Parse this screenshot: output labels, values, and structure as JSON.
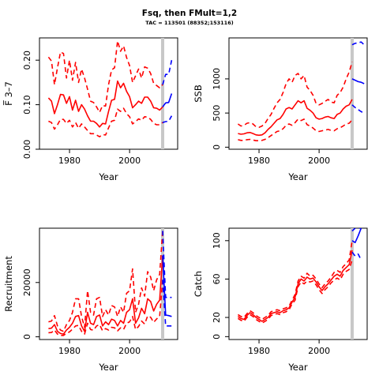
{
  "title": "Fsq, then FMult=1,2",
  "subtitle": "TAC = 113501 (88352;153116)",
  "colors": {
    "history": "#ff0000",
    "projection": "#0000ff",
    "current_year_line": "#c8c8c8",
    "axis": "#000000"
  },
  "chart_data": [
    {
      "type": "line",
      "id": "f",
      "ylabel": "F̅ 3–7",
      "xlabel": "Year",
      "xlim": [
        1970,
        2016
      ],
      "ylim": [
        0,
        0.25
      ],
      "xticks": [
        1980,
        2000
      ],
      "yticks": [
        0.0,
        0.1,
        0.2
      ],
      "ytick_labels": [
        "0.00",
        "0.10",
        "0.20"
      ],
      "vline_x": 2011,
      "history": {
        "x": [
          1973,
          1974,
          1975,
          1976,
          1977,
          1978,
          1979,
          1980,
          1981,
          1982,
          1983,
          1984,
          1985,
          1986,
          1987,
          1988,
          1989,
          1990,
          1991,
          1992,
          1993,
          1994,
          1995,
          1996,
          1997,
          1998,
          1999,
          2000,
          2001,
          2002,
          2003,
          2004,
          2005,
          2006,
          2007,
          2008,
          2009,
          2010,
          2011
        ],
        "mid": [
          0.115,
          0.108,
          0.08,
          0.1,
          0.123,
          0.122,
          0.103,
          0.118,
          0.088,
          0.11,
          0.085,
          0.1,
          0.09,
          0.075,
          0.063,
          0.063,
          0.058,
          0.05,
          0.058,
          0.057,
          0.085,
          0.11,
          0.112,
          0.153,
          0.138,
          0.148,
          0.13,
          0.118,
          0.093,
          0.1,
          0.108,
          0.103,
          0.117,
          0.117,
          0.108,
          0.093,
          0.092,
          0.088,
          0.095
        ],
        "upper": [
          0.207,
          0.198,
          0.145,
          0.183,
          0.218,
          0.215,
          0.16,
          0.2,
          0.155,
          0.195,
          0.15,
          0.18,
          0.16,
          0.135,
          0.108,
          0.105,
          0.095,
          0.083,
          0.098,
          0.097,
          0.145,
          0.178,
          0.183,
          0.243,
          0.22,
          0.232,
          0.206,
          0.188,
          0.15,
          0.165,
          0.18,
          0.16,
          0.185,
          0.182,
          0.17,
          0.148,
          0.143,
          0.138,
          0.145
        ],
        "lower": [
          0.063,
          0.06,
          0.045,
          0.055,
          0.067,
          0.067,
          0.058,
          0.065,
          0.05,
          0.06,
          0.047,
          0.057,
          0.05,
          0.042,
          0.035,
          0.035,
          0.032,
          0.028,
          0.033,
          0.032,
          0.048,
          0.063,
          0.065,
          0.09,
          0.085,
          0.092,
          0.08,
          0.073,
          0.057,
          0.062,
          0.068,
          0.065,
          0.073,
          0.072,
          0.067,
          0.058,
          0.055,
          0.055,
          0.06
        ]
      },
      "projection": {
        "x": [
          2011,
          2012,
          2013,
          2014
        ],
        "mid": [
          0.095,
          0.104,
          0.105,
          0.125
        ],
        "upper": [
          0.145,
          0.168,
          0.168,
          0.2
        ],
        "lower": [
          0.06,
          0.062,
          0.063,
          0.075
        ]
      }
    },
    {
      "type": "line",
      "id": "ssb",
      "ylabel": "SSB",
      "xlabel": "Year",
      "xlim": [
        1970,
        2016
      ],
      "ylim": [
        -30,
        1600
      ],
      "xticks": [
        1980,
        2000
      ],
      "yticks": [
        0,
        500,
        1000
      ],
      "ytick_labels": [
        "0",
        "500",
        "1000"
      ],
      "vline_x": 2011,
      "history": {
        "x": [
          1973,
          1974,
          1975,
          1976,
          1977,
          1978,
          1979,
          1980,
          1981,
          1982,
          1983,
          1984,
          1985,
          1986,
          1987,
          1988,
          1989,
          1990,
          1991,
          1992,
          1993,
          1994,
          1995,
          1996,
          1997,
          1998,
          1999,
          2000,
          2001,
          2002,
          2003,
          2004,
          2005,
          2006,
          2007,
          2008,
          2009,
          2010,
          2011
        ],
        "mid": [
          200,
          190,
          195,
          210,
          215,
          200,
          180,
          175,
          180,
          210,
          260,
          300,
          350,
          400,
          420,
          480,
          560,
          580,
          560,
          620,
          680,
          650,
          680,
          570,
          540,
          500,
          430,
          410,
          420,
          440,
          450,
          430,
          420,
          480,
          500,
          560,
          600,
          620,
          700
        ],
        "upper": [
          340,
          310,
          320,
          350,
          360,
          340,
          300,
          290,
          310,
          350,
          420,
          480,
          570,
          650,
          700,
          800,
          930,
          1000,
          950,
          1050,
          1080,
          1000,
          1050,
          880,
          830,
          760,
          640,
          620,
          640,
          670,
          700,
          660,
          650,
          760,
          800,
          880,
          1000,
          1100,
          1250
        ],
        "lower": [
          110,
          100,
          100,
          110,
          115,
          105,
          95,
          95,
          100,
          115,
          140,
          170,
          200,
          230,
          240,
          270,
          320,
          340,
          320,
          360,
          410,
          390,
          410,
          330,
          310,
          280,
          240,
          230,
          240,
          250,
          260,
          245,
          240,
          270,
          285,
          310,
          340,
          350,
          400
        ]
      },
      "projection": {
        "x": [
          2011,
          2012,
          2013,
          2014,
          2015
        ],
        "mid": [
          1000,
          980,
          960,
          950,
          930
        ],
        "upper": [
          1500,
          1520,
          1530,
          1540,
          1500
        ],
        "lower": [
          620,
          580,
          550,
          520,
          500
        ]
      }
    },
    {
      "type": "line",
      "id": "recruitment",
      "ylabel": "Recruitment",
      "xlabel": "Year",
      "xlim": [
        1970,
        2016
      ],
      "ylim": [
        -1000,
        40000
      ],
      "xticks": [
        1980,
        2000
      ],
      "yticks": [
        0,
        20000
      ],
      "ytick_labels": [
        "0",
        "20000"
      ],
      "vline_x": 2011,
      "history": {
        "x": [
          1973,
          1974,
          1975,
          1976,
          1977,
          1978,
          1979,
          1980,
          1981,
          1982,
          1983,
          1984,
          1985,
          1986,
          1987,
          1988,
          1989,
          1990,
          1991,
          1992,
          1993,
          1994,
          1995,
          1996,
          1997,
          1998,
          1999,
          2000,
          2001,
          2002,
          2003,
          2004,
          2005,
          2006,
          2007,
          2008,
          2009,
          2010,
          2011
        ],
        "mid": [
          3000,
          3200,
          4500,
          2000,
          1200,
          1000,
          2500,
          3500,
          5000,
          7500,
          7800,
          4000,
          2000,
          9000,
          5000,
          4500,
          7500,
          8000,
          4000,
          5500,
          4500,
          6500,
          6000,
          4000,
          6000,
          5000,
          9000,
          10000,
          14000,
          5000,
          7000,
          10500,
          8500,
          14000,
          13000,
          9500,
          12000,
          13500,
          30000
        ],
        "upper": [
          5500,
          5800,
          7800,
          4000,
          2500,
          2000,
          4500,
          6000,
          9000,
          14000,
          14000,
          7500,
          3500,
          17000,
          9000,
          8000,
          14000,
          14500,
          7500,
          10000,
          8000,
          11500,
          11000,
          7500,
          11000,
          9000,
          16000,
          17000,
          25000,
          9000,
          12000,
          18000,
          15000,
          24000,
          22000,
          17000,
          21000,
          23000,
          39000
        ],
        "lower": [
          1500,
          1600,
          2500,
          1000,
          500,
          500,
          1300,
          1800,
          2800,
          4000,
          4200,
          2000,
          1000,
          5000,
          2700,
          2400,
          4000,
          4500,
          2200,
          3000,
          2500,
          3500,
          3300,
          2200,
          3300,
          2700,
          5000,
          5500,
          7500,
          2700,
          3800,
          5800,
          4700,
          7700,
          7200,
          5300,
          6600,
          7500,
          21000
        ]
      },
      "projection": {
        "x": [
          2011,
          2012,
          2013,
          2014
        ],
        "mid": [
          30000,
          8000,
          7800,
          7500
        ],
        "upper": [
          39000,
          14500,
          14500,
          14500
        ],
        "lower": [
          21000,
          4000,
          4000,
          4000
        ]
      }
    },
    {
      "type": "line",
      "id": "catch",
      "ylabel": "Catch",
      "xlabel": "Year",
      "xlim": [
        1970,
        2016
      ],
      "ylim": [
        -3,
        113
      ],
      "xticks": [
        1980,
        2000
      ],
      "yticks": [
        0,
        20,
        60,
        100
      ],
      "ytick_labels": [
        "0",
        "20",
        "60",
        "100"
      ],
      "vline_x": 2011,
      "history": {
        "x": [
          1973,
          1974,
          1975,
          1976,
          1977,
          1978,
          1979,
          1980,
          1981,
          1982,
          1983,
          1984,
          1985,
          1986,
          1987,
          1988,
          1989,
          1990,
          1991,
          1992,
          1993,
          1994,
          1995,
          1996,
          1997,
          1998,
          1999,
          2000,
          2001,
          2002,
          2003,
          2004,
          2005,
          2006,
          2007,
          2008,
          2009,
          2010,
          2011
        ],
        "mid": [
          21,
          19,
          18,
          22,
          25,
          23,
          20,
          18,
          16,
          18,
          20,
          24,
          25,
          26,
          25,
          27,
          28,
          30,
          36,
          41,
          55,
          60,
          58,
          62,
          60,
          61,
          57,
          52,
          48,
          52,
          55,
          59,
          63,
          65,
          63,
          69,
          72,
          75,
          90
        ],
        "upper": [
          23,
          21,
          20,
          24,
          27,
          25,
          22,
          20,
          18,
          20,
          22,
          26,
          27,
          28,
          27,
          29,
          30,
          32,
          38,
          44,
          58,
          63,
          61,
          66,
          63,
          64,
          60,
          55,
          51,
          55,
          58,
          62,
          67,
          69,
          67,
          73,
          76,
          80,
          100
        ],
        "lower": [
          19,
          17,
          16,
          20,
          23,
          21,
          18,
          16,
          14,
          16,
          18,
          22,
          23,
          24,
          23,
          25,
          26,
          28,
          34,
          38,
          52,
          57,
          55,
          58,
          57,
          58,
          54,
          49,
          45,
          49,
          52,
          56,
          59,
          61,
          59,
          65,
          68,
          70,
          80
        ]
      },
      "projection": {
        "x": [
          2011,
          2012,
          2013,
          2014
        ],
        "mid": [
          100,
          98,
          105,
          113
        ],
        "upper": [
          110,
          113,
          113,
          113
        ],
        "lower": [
          88,
          84,
          86,
          80
        ]
      }
    }
  ]
}
